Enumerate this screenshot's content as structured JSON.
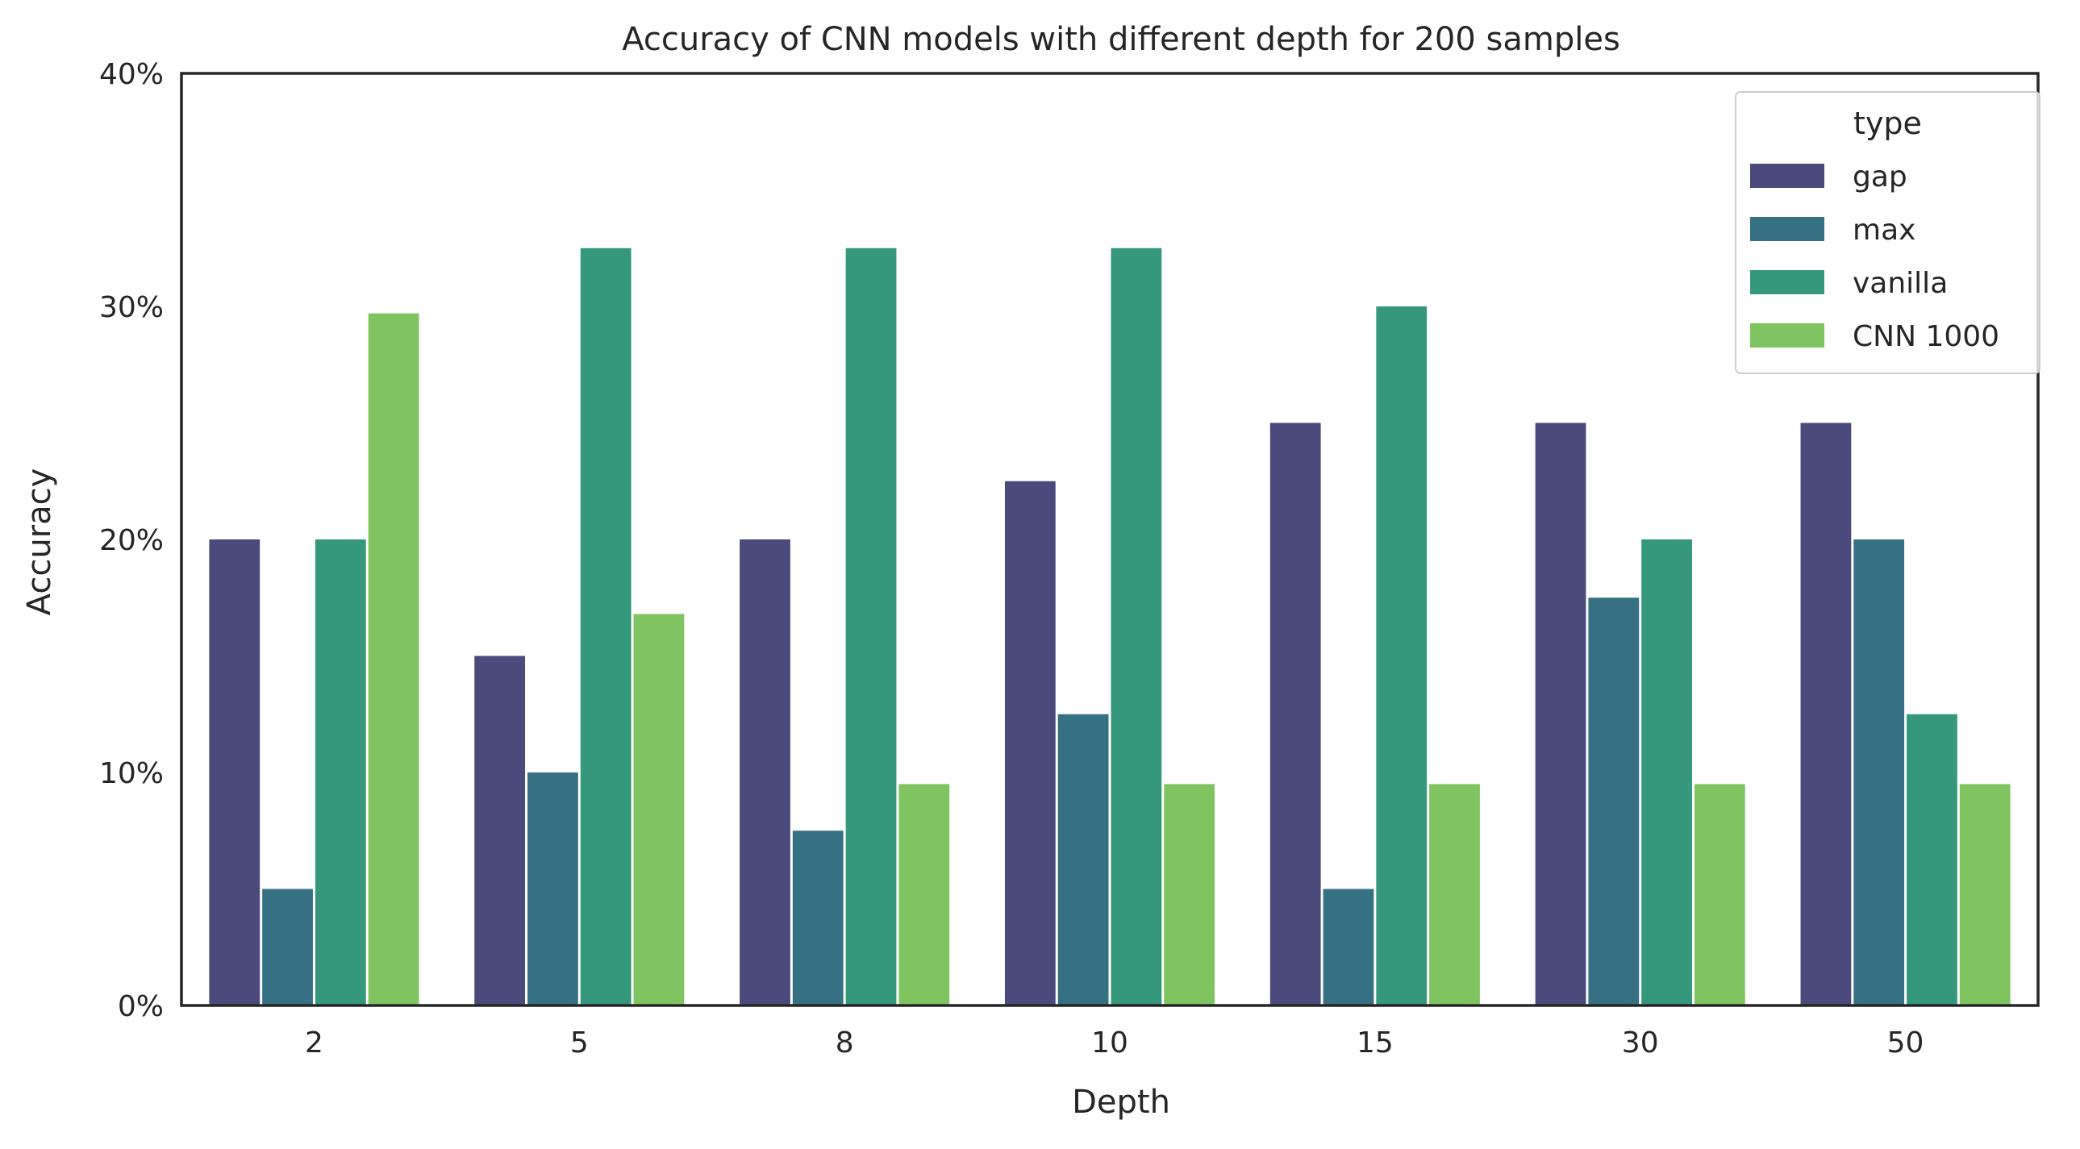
{
  "chart_data": {
    "type": "bar",
    "title": "Accuracy of CNN models with different depth for 200 samples",
    "xlabel": "Depth",
    "ylabel": "Accuracy",
    "categories": [
      "2",
      "5",
      "8",
      "10",
      "15",
      "30",
      "50"
    ],
    "ylim": [
      0,
      0.4
    ],
    "yticks": [
      0,
      0.1,
      0.2,
      0.3,
      0.4
    ],
    "ytick_labels": [
      "0%",
      "10%",
      "20%",
      "30%",
      "40%"
    ],
    "grid": false,
    "legend": {
      "title": "type",
      "placement": "top-right"
    },
    "series": [
      {
        "name": "gap",
        "color": "#4a4a7c",
        "values": [
          0.2,
          0.15,
          0.2,
          0.225,
          0.25,
          0.25,
          0.25
        ]
      },
      {
        "name": "max",
        "color": "#357083",
        "values": [
          0.05,
          0.1,
          0.075,
          0.125,
          0.05,
          0.175,
          0.2
        ]
      },
      {
        "name": "vanilla",
        "color": "#35987c",
        "values": [
          0.2,
          0.325,
          0.325,
          0.325,
          0.3,
          0.2,
          0.125
        ]
      },
      {
        "name": "CNN 1000",
        "color": "#80c462",
        "values": [
          0.297,
          0.168,
          0.095,
          0.095,
          0.095,
          0.095,
          0.095
        ]
      }
    ]
  }
}
